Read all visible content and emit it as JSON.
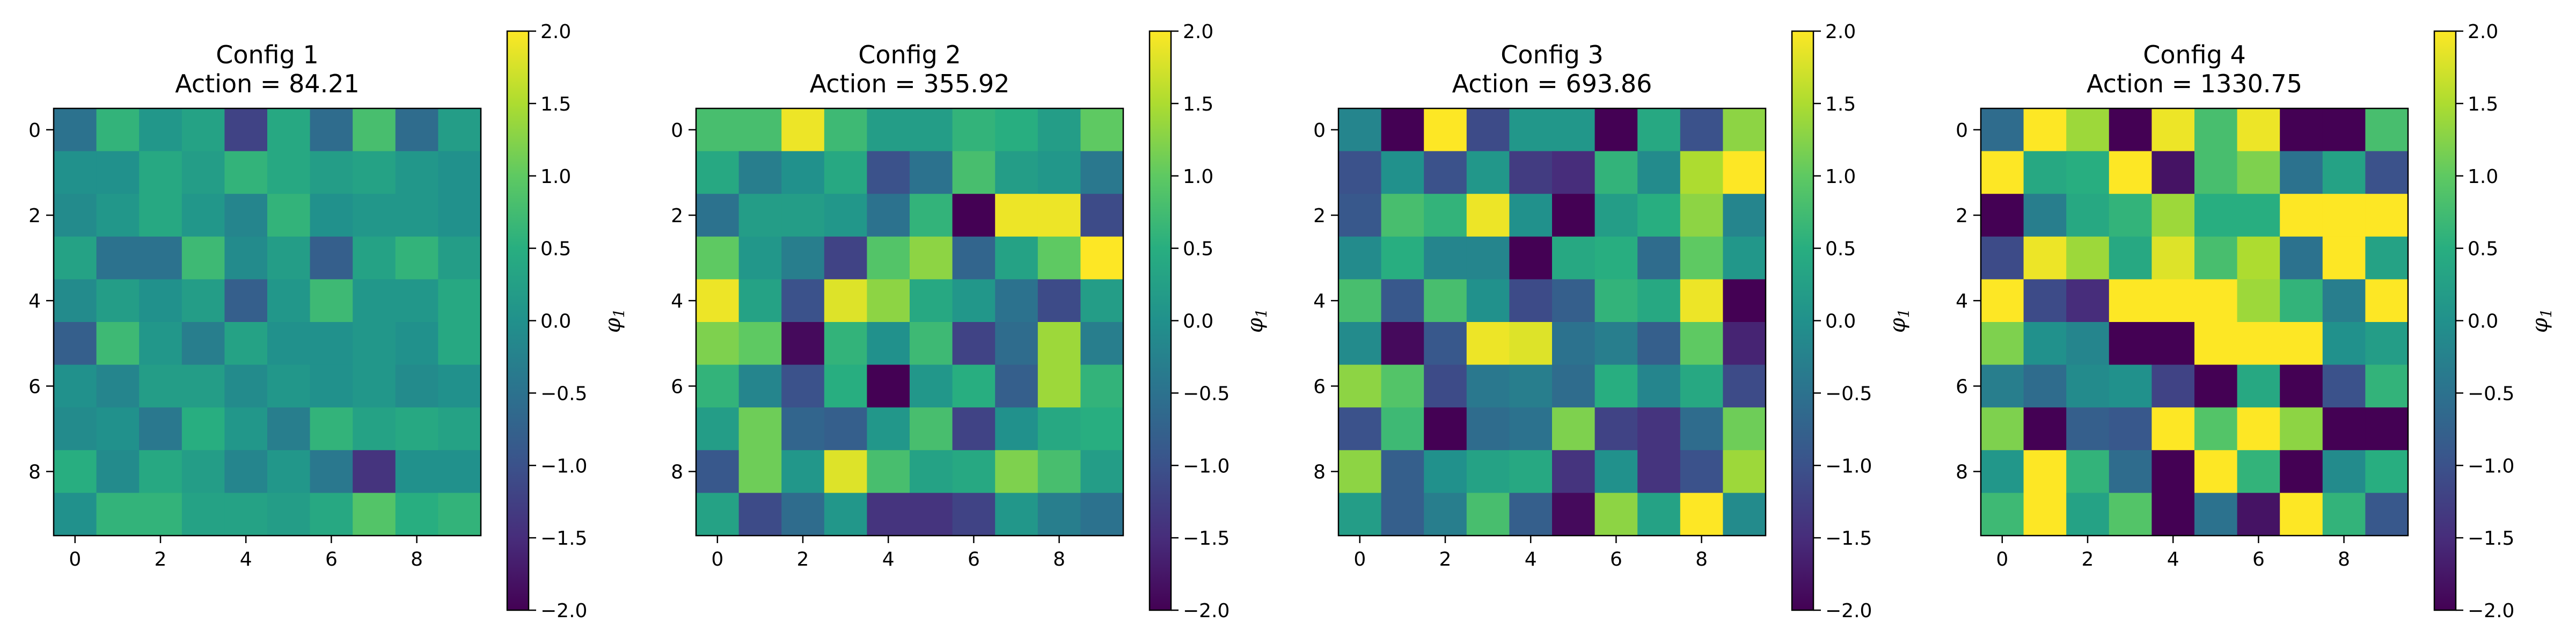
{
  "chart_data": [
    {
      "type": "heatmap",
      "title": "Config 1",
      "subtitle": "Action = 84.21",
      "x_ticks": [
        "0",
        "2",
        "4",
        "6",
        "8"
      ],
      "y_ticks": [
        "0",
        "2",
        "4",
        "6",
        "8"
      ],
      "colorbar": {
        "label_base": "φ",
        "label_sub": "1",
        "ticks": [
          "2.0",
          "1.5",
          "1.0",
          "0.5",
          "0.0",
          "−0.5",
          "−1.0",
          "−1.5",
          "−2.0"
        ],
        "vmin": -2.0,
        "vmax": 2.0
      },
      "values": [
        [
          -0.5,
          0.6,
          0.1,
          0.3,
          -1.2,
          0.4,
          -0.6,
          0.8,
          -0.6,
          0.2
        ],
        [
          0.0,
          0.0,
          0.4,
          0.2,
          0.6,
          0.4,
          0.2,
          0.3,
          0.1,
          0.0
        ],
        [
          -0.1,
          0.1,
          0.4,
          0.1,
          -0.2,
          0.6,
          0.0,
          0.1,
          0.1,
          0.0
        ],
        [
          0.3,
          -0.5,
          -0.5,
          0.7,
          -0.1,
          0.2,
          -0.8,
          0.3,
          0.6,
          0.2
        ],
        [
          -0.1,
          0.2,
          0.0,
          0.2,
          -0.8,
          0.1,
          0.7,
          0.1,
          0.1,
          0.4
        ],
        [
          -0.8,
          0.7,
          0.1,
          -0.3,
          0.3,
          0.0,
          0.0,
          0.1,
          0.0,
          0.4
        ],
        [
          0.0,
          -0.2,
          0.2,
          0.2,
          -0.1,
          0.1,
          0.0,
          0.1,
          -0.1,
          0.0
        ],
        [
          -0.1,
          0.0,
          -0.4,
          0.5,
          0.1,
          -0.3,
          0.6,
          0.3,
          0.4,
          0.3
        ],
        [
          0.5,
          -0.1,
          0.4,
          0.2,
          -0.2,
          0.1,
          -0.4,
          -1.4,
          0.0,
          0.0
        ],
        [
          0.0,
          0.6,
          0.6,
          0.3,
          0.3,
          0.2,
          0.4,
          0.9,
          0.5,
          0.6
        ]
      ]
    },
    {
      "type": "heatmap",
      "title": "Config 2",
      "subtitle": "Action = 355.92",
      "x_ticks": [
        "0",
        "2",
        "4",
        "6",
        "8"
      ],
      "y_ticks": [
        "0",
        "2",
        "4",
        "6",
        "8"
      ],
      "colorbar": {
        "label_base": "φ",
        "label_sub": "1",
        "ticks": [
          "2.0",
          "1.5",
          "1.0",
          "0.5",
          "0.0",
          "−0.5",
          "−1.0",
          "−1.5",
          "−2.0"
        ],
        "vmin": -2.0,
        "vmax": 2.0
      },
      "values": [
        [
          0.8,
          0.8,
          1.9,
          0.7,
          0.2,
          0.2,
          0.6,
          0.5,
          0.2,
          1.0
        ],
        [
          0.4,
          -0.3,
          0.0,
          0.4,
          -1.0,
          -0.5,
          0.8,
          0.2,
          0.1,
          -0.4
        ],
        [
          -0.5,
          0.2,
          0.2,
          0.1,
          -0.5,
          0.6,
          -2.0,
          1.9,
          1.9,
          -1.1
        ],
        [
          1.0,
          0.1,
          -0.3,
          -1.2,
          0.9,
          1.3,
          -0.7,
          0.3,
          1.0,
          2.0
        ],
        [
          1.9,
          0.3,
          -1.0,
          1.8,
          1.3,
          0.4,
          0.1,
          -0.5,
          -1.1,
          0.2
        ],
        [
          1.2,
          1.0,
          -1.9,
          0.6,
          0.0,
          0.7,
          -1.2,
          -0.6,
          1.4,
          -0.3
        ],
        [
          0.6,
          -0.2,
          -1.0,
          0.5,
          -2.0,
          0.1,
          0.5,
          -0.8,
          1.4,
          0.6
        ],
        [
          0.2,
          1.1,
          -0.7,
          -0.8,
          0.1,
          0.8,
          -1.2,
          0.0,
          0.4,
          0.5
        ],
        [
          -0.9,
          1.1,
          0.1,
          1.8,
          0.8,
          0.3,
          0.4,
          1.2,
          0.8,
          0.2
        ],
        [
          0.3,
          -1.1,
          -0.6,
          0.1,
          -1.4,
          -1.4,
          -1.2,
          0.1,
          -0.3,
          -0.5
        ]
      ]
    },
    {
      "type": "heatmap",
      "title": "Config 3",
      "subtitle": "Action = 693.86",
      "x_ticks": [
        "0",
        "2",
        "4",
        "6",
        "8"
      ],
      "y_ticks": [
        "0",
        "2",
        "4",
        "6",
        "8"
      ],
      "colorbar": {
        "label_base": "φ",
        "label_sub": "1",
        "ticks": [
          "2.0",
          "1.5",
          "1.0",
          "0.5",
          "0.0",
          "−0.5",
          "−1.0",
          "−1.5",
          "−2.0"
        ],
        "vmin": -2.0,
        "vmax": 2.0
      },
      "values": [
        [
          -0.2,
          -2.0,
          2.0,
          -1.1,
          0.1,
          0.1,
          -2.0,
          0.4,
          -1.0,
          1.3
        ],
        [
          -1.0,
          0.0,
          -1.0,
          0.1,
          -1.3,
          -1.5,
          0.6,
          -0.1,
          1.5,
          2.0
        ],
        [
          -0.9,
          0.8,
          0.6,
          1.9,
          0.0,
          -2.0,
          0.2,
          0.5,
          1.3,
          -0.2
        ],
        [
          -0.1,
          0.5,
          -0.2,
          -0.2,
          -2.0,
          0.4,
          0.5,
          -0.6,
          1.0,
          0.1
        ],
        [
          0.8,
          -0.9,
          0.8,
          0.0,
          -1.1,
          -0.8,
          0.6,
          0.4,
          1.9,
          -2.0
        ],
        [
          -0.1,
          -1.9,
          -0.9,
          1.9,
          1.8,
          -0.5,
          -0.3,
          -0.8,
          1.0,
          -1.6
        ],
        [
          1.3,
          0.9,
          -1.1,
          -0.4,
          -0.3,
          -0.6,
          0.5,
          -0.2,
          0.4,
          -1.1
        ],
        [
          -1.0,
          0.7,
          -2.0,
          -0.6,
          -0.5,
          1.2,
          -1.2,
          -1.4,
          -0.6,
          1.1
        ],
        [
          1.3,
          -0.8,
          0.0,
          0.3,
          0.4,
          -1.4,
          0.0,
          -1.4,
          -1.0,
          1.4
        ],
        [
          0.2,
          -0.8,
          -0.3,
          0.8,
          -0.8,
          -1.9,
          1.3,
          0.3,
          2.0,
          -0.1
        ]
      ]
    },
    {
      "type": "heatmap",
      "title": "Config 4",
      "subtitle": "Action = 1330.75",
      "x_ticks": [
        "0",
        "2",
        "4",
        "6",
        "8"
      ],
      "y_ticks": [
        "0",
        "2",
        "4",
        "6",
        "8"
      ],
      "colorbar": {
        "label_base": "φ",
        "label_sub": "1",
        "ticks": [
          "2.0",
          "1.5",
          "1.0",
          "0.5",
          "0.0",
          "−0.5",
          "−1.0",
          "−1.5",
          "−2.0"
        ],
        "vmin": -2.0,
        "vmax": 2.0
      },
      "values": [
        [
          -0.6,
          2.0,
          1.4,
          -2.0,
          1.9,
          0.8,
          1.9,
          -2.0,
          -2.0,
          0.8
        ],
        [
          2.0,
          0.4,
          0.5,
          2.0,
          -1.8,
          0.8,
          1.2,
          -0.5,
          0.3,
          -1.0
        ],
        [
          -2.0,
          -0.3,
          0.4,
          0.6,
          1.4,
          0.5,
          0.5,
          2.0,
          2.0,
          2.0
        ],
        [
          -1.1,
          1.9,
          1.4,
          0.4,
          1.8,
          0.8,
          1.5,
          -0.5,
          2.0,
          0.3
        ],
        [
          2.0,
          -1.1,
          -1.5,
          2.0,
          2.0,
          2.0,
          1.4,
          0.6,
          -0.3,
          2.0
        ],
        [
          1.2,
          0.0,
          -0.2,
          -2.0,
          -2.0,
          2.0,
          2.0,
          2.0,
          0.0,
          0.2
        ],
        [
          -0.3,
          -0.6,
          -0.1,
          0.0,
          -1.2,
          -2.0,
          0.4,
          -2.0,
          -1.0,
          0.6
        ],
        [
          1.2,
          -2.0,
          -0.8,
          -0.9,
          2.0,
          0.9,
          2.0,
          1.3,
          -2.0,
          -2.0
        ],
        [
          0.1,
          2.0,
          0.6,
          -0.6,
          -2.0,
          2.0,
          0.6,
          -2.0,
          -0.1,
          0.5
        ],
        [
          0.7,
          2.0,
          0.3,
          0.9,
          -2.0,
          -0.5,
          -1.8,
          2.0,
          0.6,
          -0.9
        ]
      ]
    }
  ]
}
